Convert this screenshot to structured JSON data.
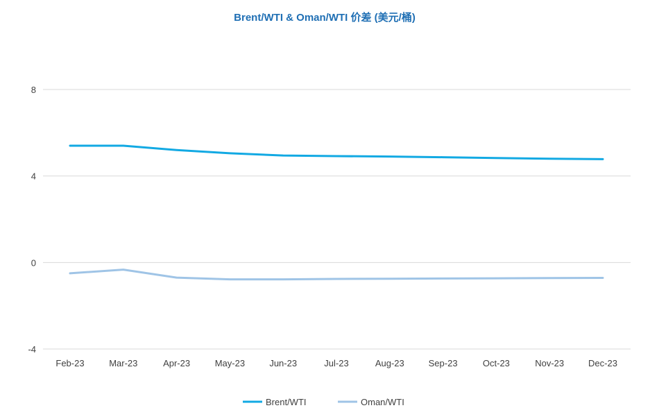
{
  "chart_data": {
    "type": "line",
    "title": "Brent/WTI & Oman/WTI 价差 (美元/桶)",
    "categories": [
      "Feb-23",
      "Mar-23",
      "Apr-23",
      "May-23",
      "Jun-23",
      "Jul-23",
      "Aug-23",
      "Sep-23",
      "Oct-23",
      "Nov-23",
      "Dec-23"
    ],
    "ylim": [
      -4,
      8
    ],
    "yticks": [
      -4,
      0,
      4,
      8
    ],
    "grid": true,
    "legend_position": "bottom",
    "series": [
      {
        "name": "Brent/WTI",
        "color": "#12A9E3",
        "values": [
          5.4,
          5.4,
          5.2,
          5.05,
          4.95,
          4.92,
          4.9,
          4.87,
          4.83,
          4.8,
          4.78
        ]
      },
      {
        "name": "Oman/WTI",
        "color": "#9FC4E6",
        "values": [
          -0.5,
          -0.33,
          -0.7,
          -0.78,
          -0.78,
          -0.76,
          -0.75,
          -0.74,
          -0.73,
          -0.72,
          -0.71
        ]
      }
    ],
    "title_color": "#1F6FB4",
    "grid_color": "#D9D9D9"
  }
}
